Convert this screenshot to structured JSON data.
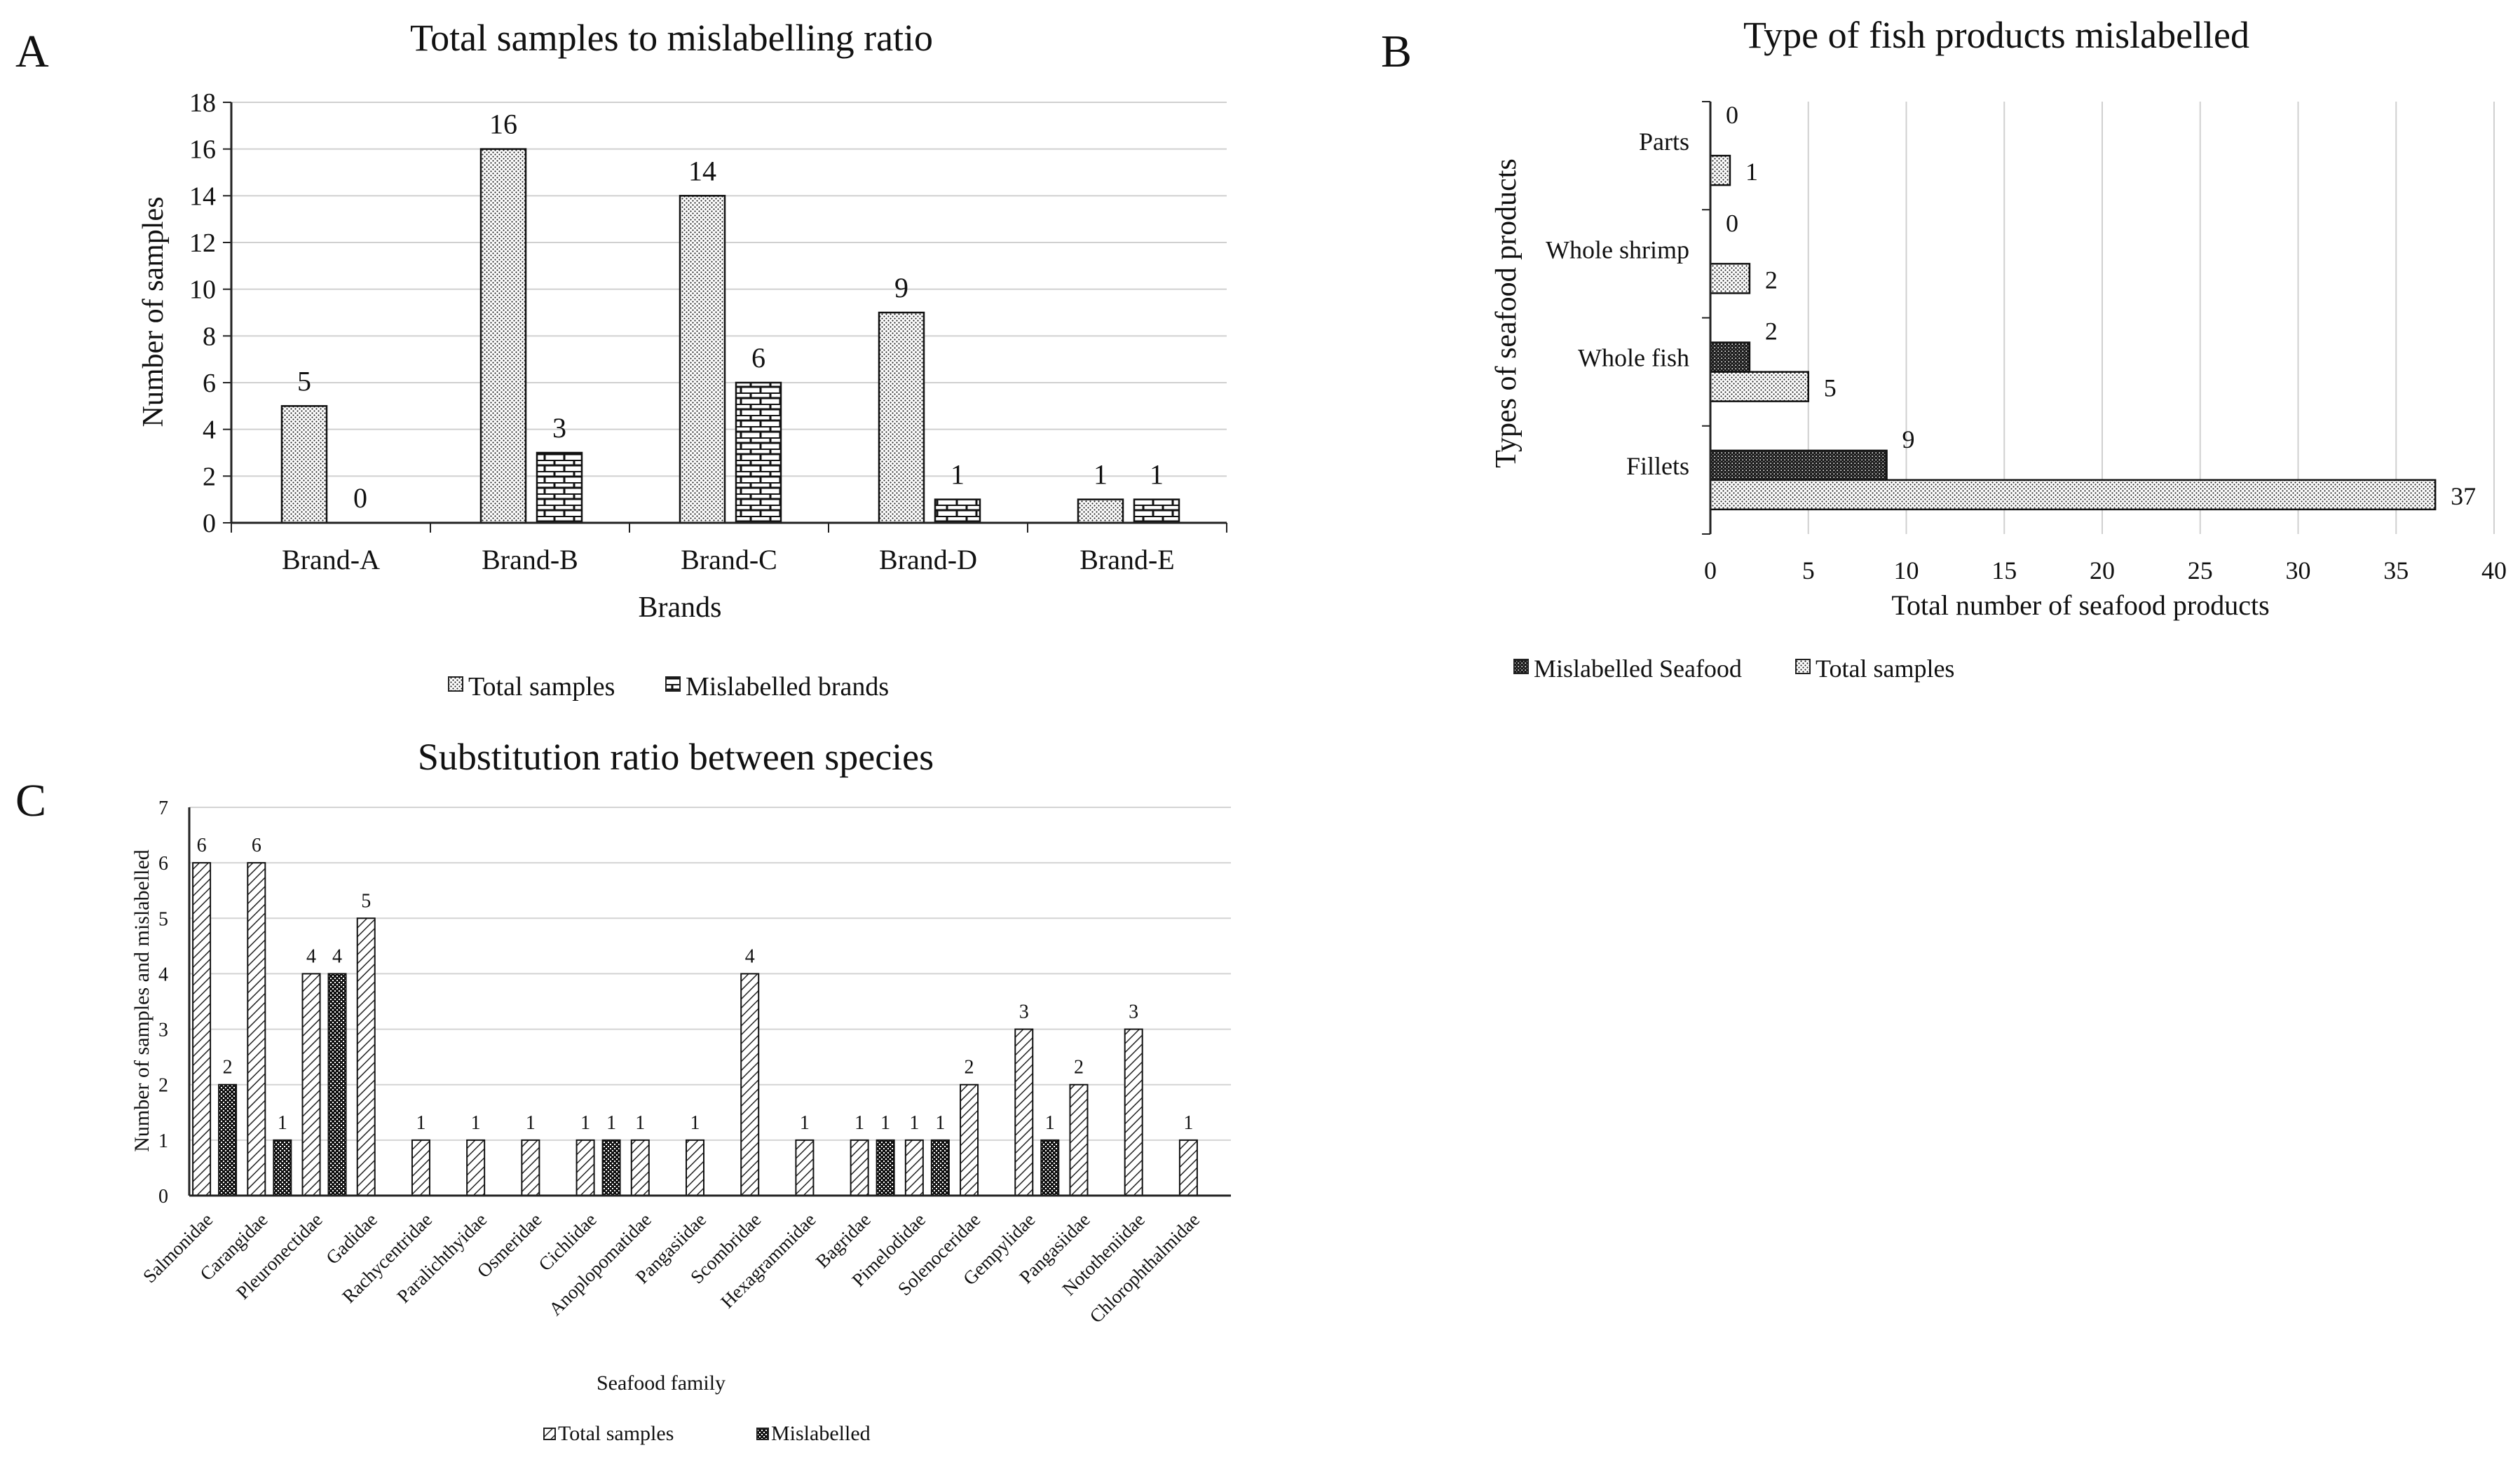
{
  "chart_data": [
    {
      "panel_label": "A",
      "type": "bar",
      "orientation": "vertical",
      "title": "Total samples to mislabelling ratio",
      "xlabel": "Brands",
      "ylabel": "Number of  samples",
      "categories": [
        "Brand-A",
        "Brand-B",
        "Brand-C",
        "Brand-D",
        "Brand-E"
      ],
      "series": [
        {
          "name": "Total samples",
          "values": [
            5,
            16,
            14,
            9,
            1
          ],
          "labels": [
            "5",
            "16",
            "14",
            "9",
            "1"
          ]
        },
        {
          "name": "Mislabelled brands",
          "values": [
            0,
            3,
            6,
            1,
            1
          ],
          "labels": [
            "0",
            "3",
            "6",
            "1",
            "1"
          ]
        }
      ],
      "ylim": [
        0,
        18
      ],
      "yticks": [
        "0",
        "2",
        "4",
        "6",
        "8",
        "10",
        "12",
        "14",
        "16",
        "18"
      ],
      "grid": true,
      "legend": "bottom"
    },
    {
      "panel_label": "B",
      "type": "bar",
      "orientation": "horizontal",
      "title": "Type of fish products mislabelled",
      "xlabel": "Total number  of seafood products",
      "ylabel": "Types of seafood products",
      "categories": [
        "Parts",
        "Whole shrimp",
        "Whole fish",
        "Fillets"
      ],
      "series": [
        {
          "name": "Mislabelled Seafood",
          "values": [
            0,
            0,
            2,
            9
          ],
          "labels": [
            "0",
            "0",
            "2",
            "9"
          ]
        },
        {
          "name": "Total samples",
          "values": [
            1,
            2,
            5,
            37
          ],
          "labels": [
            "1",
            "2",
            "5",
            "37"
          ]
        }
      ],
      "xlim": [
        0,
        40
      ],
      "xticks": [
        "0",
        "5",
        "10",
        "15",
        "20",
        "25",
        "30",
        "35",
        "40"
      ],
      "grid": true,
      "legend": "bottom-left"
    },
    {
      "panel_label": "C",
      "type": "bar",
      "orientation": "vertical",
      "title": "Substitution ratio between species",
      "xlabel": "Seafood family",
      "ylabel": "Number of samples and mislabelled",
      "categories": [
        "Salmonidae",
        "Carangidae",
        "Pleuronectidae",
        "Gadidae",
        "Rachycentridae",
        "Paralichthyidae",
        "Osmeridae",
        "Cichlidae",
        "Anoplopomatidae",
        "Pangasiidae",
        "Scombridae",
        "Hexagrammidae",
        "Bagridae",
        "Pimelodidae",
        "Solenoceridae",
        "Gempylidae",
        "Pangasiidae",
        "Nototheniidae",
        "Chlorophthalmidae"
      ],
      "series": [
        {
          "name": "Total samples",
          "values": [
            6,
            6,
            4,
            5,
            1,
            1,
            1,
            1,
            1,
            1,
            4,
            1,
            1,
            1,
            2,
            3,
            2,
            3,
            1
          ],
          "labels": [
            "6",
            "6",
            "4",
            "5",
            "1",
            "1",
            "1",
            "1",
            "1",
            "1",
            "4",
            "1",
            "1",
            "1",
            "2",
            "3",
            "2",
            "3",
            "1"
          ]
        },
        {
          "name": "Mislabelled",
          "values": [
            2,
            1,
            4,
            0,
            0,
            0,
            0,
            1,
            0,
            0,
            0,
            0,
            1,
            1,
            0,
            1,
            0,
            0,
            0
          ],
          "labels": [
            "2",
            "1",
            "4",
            "",
            "",
            "",
            "",
            "1",
            "",
            "",
            "",
            "",
            "1",
            "1",
            "",
            "1",
            "",
            "",
            ""
          ]
        }
      ],
      "ylim": [
        0,
        7
      ],
      "yticks": [
        "0",
        "1",
        "2",
        "3",
        "4",
        "5",
        "6",
        "7"
      ],
      "grid": true,
      "legend": "bottom"
    }
  ]
}
